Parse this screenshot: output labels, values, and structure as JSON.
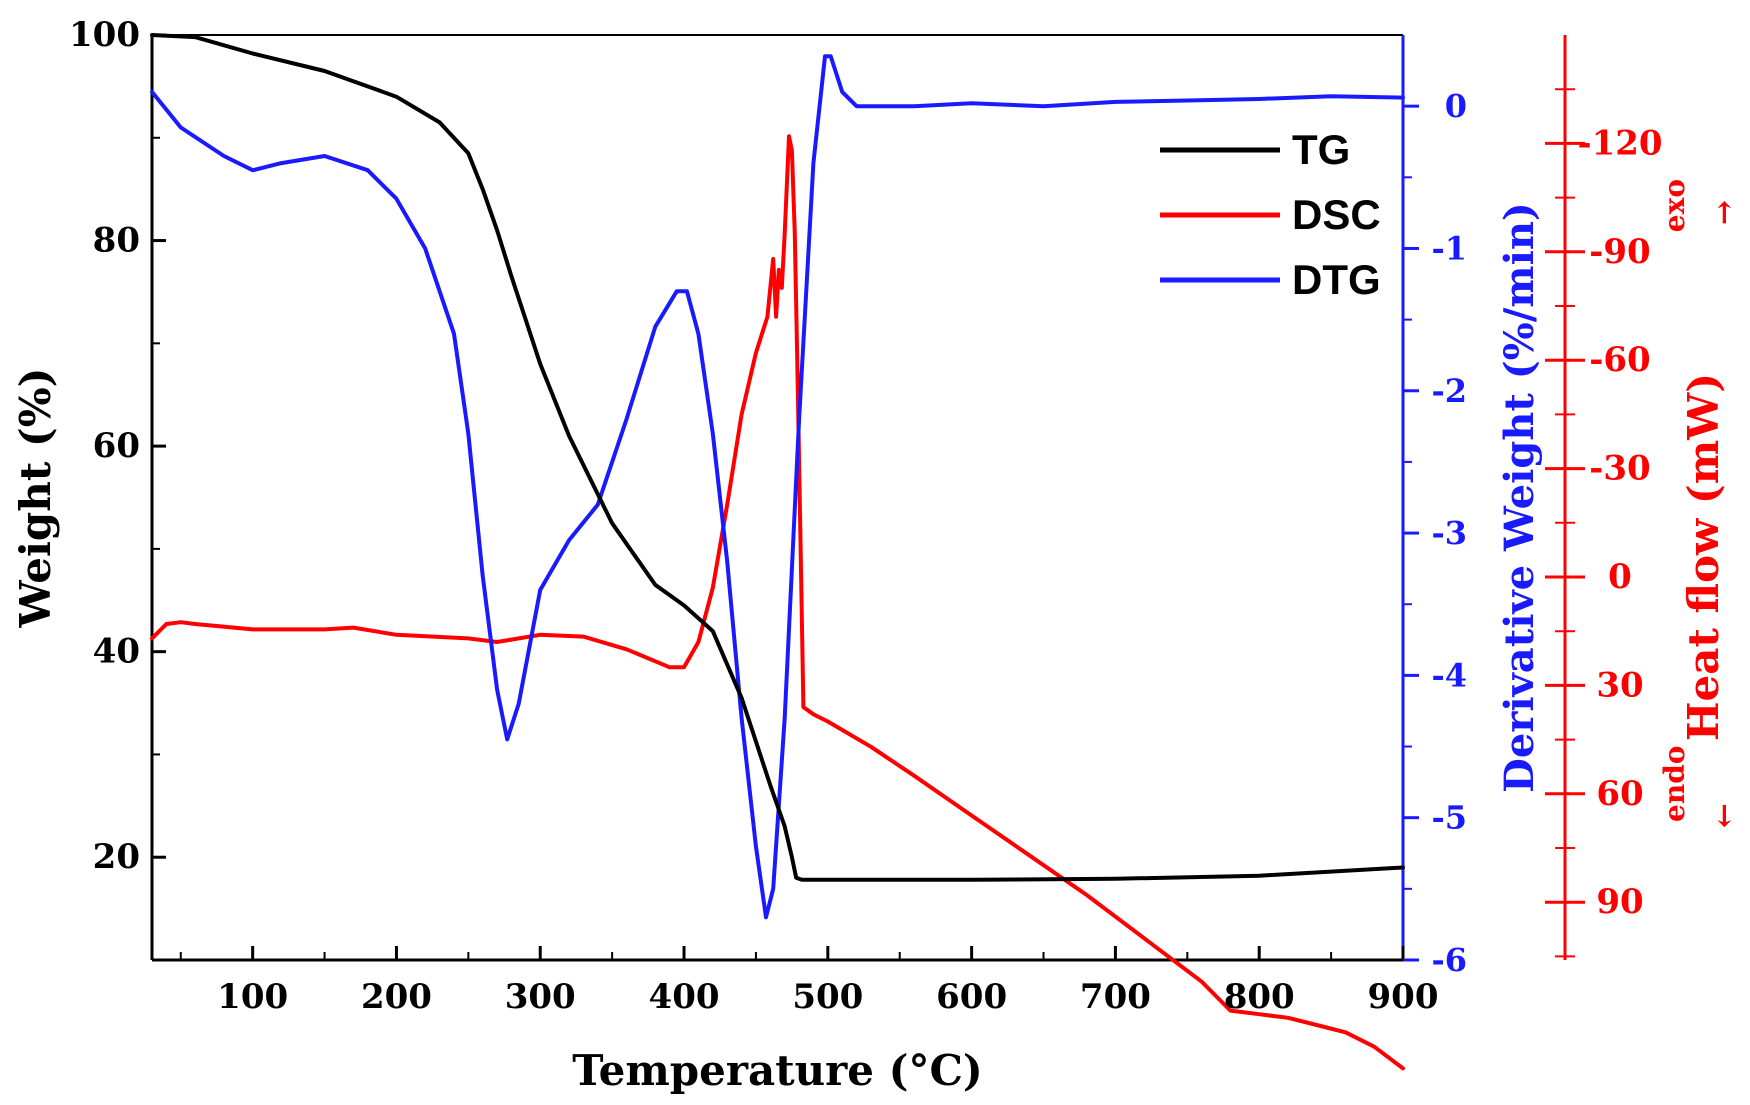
{
  "chart_data": {
    "type": "line",
    "title": "",
    "xlabel": "Temperature (°C)",
    "xlim": [
      30,
      900
    ],
    "x_ticks": [
      "100",
      "200",
      "300",
      "400",
      "500",
      "600",
      "700",
      "800",
      "900"
    ],
    "axes": {
      "left": {
        "label": "Weight (%)",
        "ylim": [
          10,
          100
        ],
        "ticks": [
          "20",
          "40",
          "60",
          "80",
          "100"
        ],
        "color": "#000000"
      },
      "right_inner": {
        "label": "Derivative Weight (%/min)",
        "ylim": [
          -6,
          0.5
        ],
        "ticks": [
          "0",
          "-1",
          "-2",
          "-3",
          "-4",
          "-5",
          "-6"
        ],
        "color": "#1a1aff"
      },
      "right_outer": {
        "label": "Heat flow (mW)",
        "ylim": [
          106,
          -150
        ],
        "ticks": [
          "-120",
          "-90",
          "-60",
          "-30",
          "0",
          "30",
          "60",
          "90"
        ],
        "color": "#ff0000",
        "annotations": {
          "exo": "exo",
          "exo_arrow": "→",
          "endo": "endo",
          "endo_arrow": "←"
        }
      }
    },
    "legend": {
      "position": "top-right",
      "entries": [
        "TG",
        "DSC",
        "DTG"
      ]
    },
    "series": [
      {
        "name": "TG",
        "axis": "left",
        "color": "#000000",
        "x": [
          30,
          60,
          100,
          150,
          200,
          230,
          250,
          260,
          270,
          280,
          300,
          320,
          350,
          380,
          400,
          420,
          440,
          460,
          470,
          475,
          478,
          482,
          500,
          600,
          700,
          800,
          900
        ],
        "y": [
          100,
          99.8,
          98.2,
          96.5,
          94,
          91.5,
          88.5,
          85,
          81,
          76.5,
          68,
          61,
          52.5,
          46.5,
          44.5,
          42,
          35.5,
          27,
          23,
          20,
          18,
          17.8,
          17.8,
          17.8,
          17.9,
          18.2,
          19
        ]
      },
      {
        "name": "DSC",
        "axis": "right_outer",
        "color": "#ff0000",
        "x": [
          30,
          40,
          50,
          60,
          100,
          150,
          170,
          200,
          250,
          270,
          300,
          330,
          360,
          390,
          400,
          410,
          420,
          430,
          440,
          450,
          458,
          462,
          464,
          466,
          468,
          470,
          473,
          475,
          477,
          479,
          481,
          483,
          490,
          500,
          530,
          560,
          600,
          640,
          680,
          720,
          760,
          780,
          800,
          820,
          840,
          860,
          880,
          900
        ],
        "y": [
          17,
          13,
          12.5,
          13,
          14.5,
          14.5,
          14,
          16,
          17,
          18,
          16,
          16.5,
          20,
          25,
          25,
          18,
          3,
          -20,
          -45,
          -62,
          -72,
          -88,
          -72,
          -85,
          -80,
          -95,
          -122,
          -118,
          -95,
          -55,
          -10,
          36,
          38,
          40,
          47,
          55,
          66,
          77,
          88,
          100,
          112,
          120,
          121,
          122,
          124,
          126,
          130,
          136
        ]
      },
      {
        "name": "DTG",
        "axis": "right_inner",
        "color": "#1a1aff",
        "x": [
          30,
          50,
          80,
          100,
          120,
          150,
          180,
          200,
          220,
          240,
          250,
          260,
          270,
          277,
          285,
          300,
          320,
          340,
          360,
          380,
          395,
          402,
          410,
          420,
          430,
          440,
          450,
          457,
          462,
          470,
          480,
          490,
          498,
          502,
          510,
          520,
          560,
          600,
          650,
          700,
          750,
          800,
          850,
          900
        ],
        "y": [
          0.1,
          -0.15,
          -0.35,
          -0.45,
          -0.4,
          -0.35,
          -0.45,
          -0.65,
          -1,
          -1.6,
          -2.3,
          -3.3,
          -4.1,
          -4.45,
          -4.2,
          -3.4,
          -3.05,
          -2.8,
          -2.2,
          -1.55,
          -1.3,
          -1.3,
          -1.6,
          -2.3,
          -3.2,
          -4.3,
          -5.2,
          -5.7,
          -5.5,
          -4.3,
          -2.2,
          -0.4,
          0.35,
          0.35,
          0.1,
          0.0,
          0.0,
          0.02,
          0.0,
          0.03,
          0.04,
          0.05,
          0.07,
          0.06
        ]
      }
    ]
  }
}
